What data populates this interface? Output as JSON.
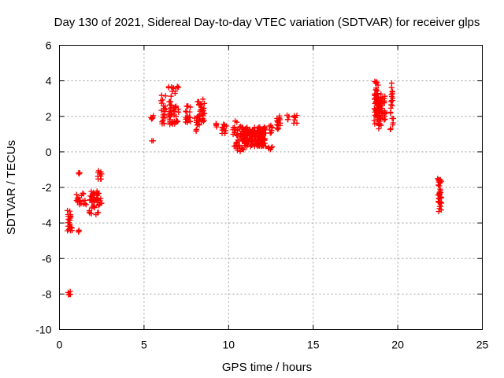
{
  "chart_data": {
    "type": "scatter",
    "title": "Day 130 of 2021, Sidereal Day-to-day VTEC variation (SDTVAR) for receiver glps",
    "xlabel": "GPS time / hours",
    "ylabel": "SDTVAR / TECUs",
    "xlim": [
      0,
      25
    ],
    "ylim": [
      -10,
      6
    ],
    "xticks": [
      "0",
      "5",
      "10",
      "15",
      "20",
      "25"
    ],
    "yticks": [
      "6",
      "4",
      "2",
      "0",
      "-2",
      "-4",
      "-6",
      "-8",
      "-10"
    ],
    "grid": true,
    "marker": "plus",
    "color": "#ff0000",
    "clusters": [
      {
        "x": [
          0.5,
          0.7
        ],
        "y": [
          -8.05,
          -7.85
        ],
        "n": 6
      },
      {
        "x": [
          0.45,
          0.75
        ],
        "y": [
          -4.5,
          -3.2
        ],
        "n": 22
      },
      {
        "x": [
          1.05,
          1.25
        ],
        "y": [
          -4.6,
          -4.4
        ],
        "n": 4
      },
      {
        "x": [
          1.1,
          1.25
        ],
        "y": [
          -1.3,
          -1.15
        ],
        "n": 3
      },
      {
        "x": [
          1.0,
          1.6
        ],
        "y": [
          -3.0,
          -2.3
        ],
        "n": 20
      },
      {
        "x": [
          1.75,
          2.35
        ],
        "y": [
          -3.6,
          -2.2
        ],
        "n": 40
      },
      {
        "x": [
          2.2,
          2.5
        ],
        "y": [
          -3.0,
          -2.6
        ],
        "n": 10
      },
      {
        "x": [
          2.25,
          2.5
        ],
        "y": [
          -1.55,
          -1.0
        ],
        "n": 10
      },
      {
        "x": [
          5.4,
          5.6
        ],
        "y": [
          1.8,
          2.05
        ],
        "n": 6
      },
      {
        "x": [
          5.45,
          5.55
        ],
        "y": [
          0.55,
          0.65
        ],
        "n": 2
      },
      {
        "x": [
          6.0,
          6.35
        ],
        "y": [
          1.5,
          3.2
        ],
        "n": 22
      },
      {
        "x": [
          6.45,
          6.85
        ],
        "y": [
          1.4,
          3.7
        ],
        "n": 40
      },
      {
        "x": [
          6.85,
          7.05
        ],
        "y": [
          1.6,
          3.8
        ],
        "n": 12
      },
      {
        "x": [
          7.45,
          7.75
        ],
        "y": [
          1.6,
          2.6
        ],
        "n": 20
      },
      {
        "x": [
          7.95,
          8.15
        ],
        "y": [
          1.1,
          1.9
        ],
        "n": 8
      },
      {
        "x": [
          8.15,
          8.6
        ],
        "y": [
          1.5,
          3.0
        ],
        "n": 36
      },
      {
        "x": [
          9.15,
          9.3
        ],
        "y": [
          1.1,
          2.1
        ],
        "n": 4
      },
      {
        "x": [
          9.6,
          9.9
        ],
        "y": [
          1.0,
          1.6
        ],
        "n": 12
      },
      {
        "x": [
          10.25,
          10.55
        ],
        "y": [
          0.15,
          1.75
        ],
        "n": 18
      },
      {
        "x": [
          10.5,
          10.9
        ],
        "y": [
          0.0,
          1.6
        ],
        "n": 28
      },
      {
        "x": [
          10.9,
          12.2
        ],
        "y": [
          0.3,
          1.4
        ],
        "n": 180
      },
      {
        "x": [
          12.35,
          12.6
        ],
        "y": [
          0.1,
          0.4
        ],
        "n": 6
      },
      {
        "x": [
          12.35,
          12.6
        ],
        "y": [
          1.0,
          1.5
        ],
        "n": 8
      },
      {
        "x": [
          12.85,
          13.1
        ],
        "y": [
          1.1,
          2.2
        ],
        "n": 16
      },
      {
        "x": [
          13.45,
          13.6
        ],
        "y": [
          1.8,
          2.2
        ],
        "n": 4
      },
      {
        "x": [
          13.85,
          14.05
        ],
        "y": [
          1.6,
          2.1
        ],
        "n": 8
      },
      {
        "x": [
          18.6,
          18.85
        ],
        "y": [
          1.5,
          4.0
        ],
        "n": 50
      },
      {
        "x": [
          18.85,
          19.25
        ],
        "y": [
          1.3,
          3.3
        ],
        "n": 50
      },
      {
        "x": [
          19.55,
          19.75
        ],
        "y": [
          1.2,
          4.0
        ],
        "n": 22
      },
      {
        "x": [
          22.35,
          22.6
        ],
        "y": [
          -3.4,
          -1.5
        ],
        "n": 40
      }
    ]
  }
}
